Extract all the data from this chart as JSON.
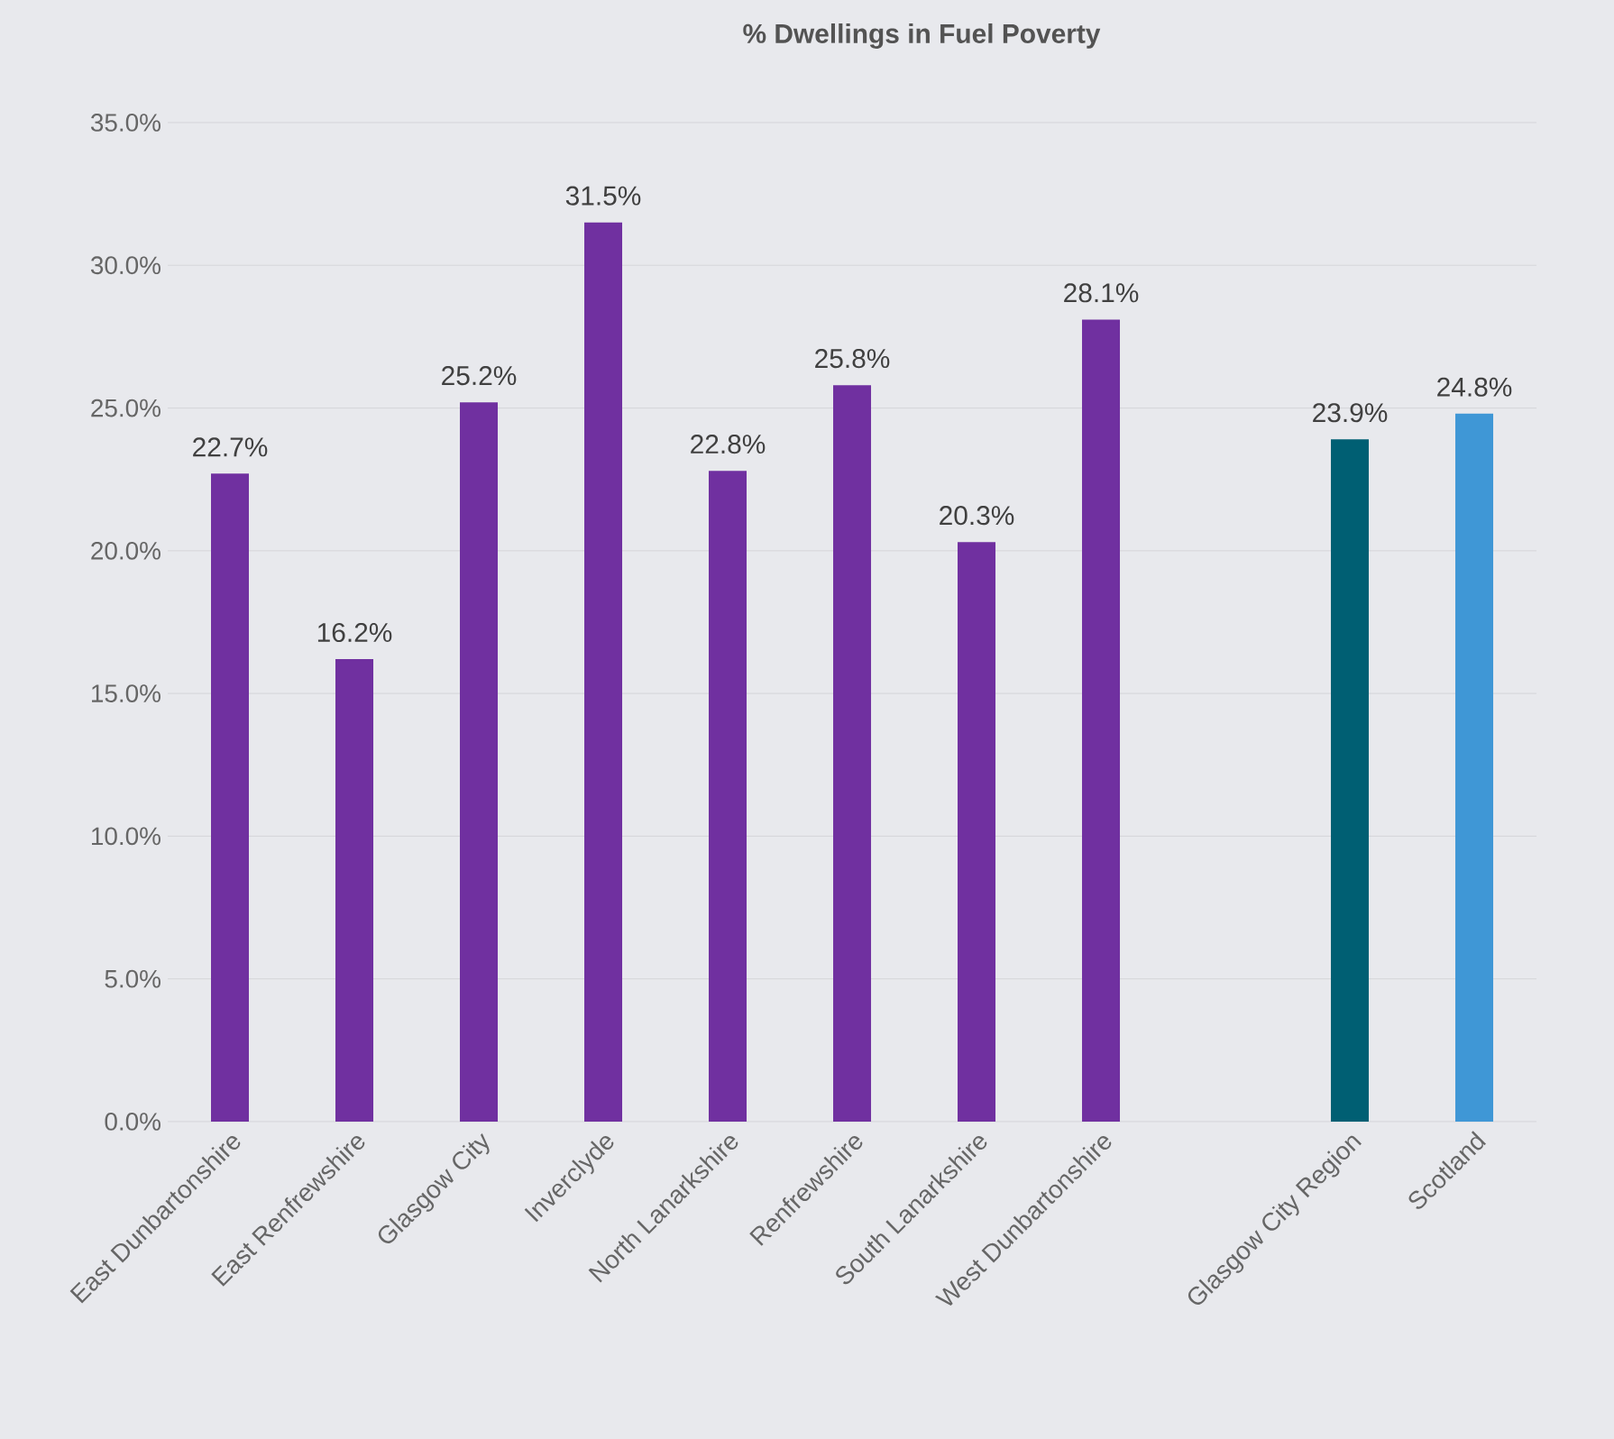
{
  "chart_data": {
    "type": "bar",
    "title": "% Dwellings in Fuel Poverty",
    "categories": [
      "East Dunbartonshire",
      "East Renfrewshire",
      "Glasgow City",
      "Inverclyde",
      "North Lanarkshire",
      "Renfrewshire",
      "South Lanarkshire",
      "West Dunbartonshire",
      null,
      "Glasgow City Region",
      "Scotland"
    ],
    "values": [
      22.7,
      16.2,
      25.2,
      31.5,
      22.8,
      25.8,
      20.3,
      28.1,
      null,
      23.9,
      24.8
    ],
    "value_labels": [
      "22.7%",
      "16.2%",
      "25.2%",
      "31.5%",
      "22.8%",
      "25.8%",
      "20.3%",
      "28.1%",
      null,
      "23.9%",
      "24.8%"
    ],
    "colors": [
      "#7030a0",
      "#7030a0",
      "#7030a0",
      "#7030a0",
      "#7030a0",
      "#7030a0",
      "#7030a0",
      "#7030a0",
      "#7030a0",
      "#005f73",
      "#3f97d6"
    ],
    "ylim": [
      0,
      35
    ],
    "yticks": [
      {
        "value": 0,
        "label": "0.0%"
      },
      {
        "value": 5,
        "label": "5.0%"
      },
      {
        "value": 10,
        "label": "10.0%"
      },
      {
        "value": 15,
        "label": "15.0%"
      },
      {
        "value": 20,
        "label": "20.0%"
      },
      {
        "value": 25,
        "label": "25.0%"
      },
      {
        "value": 30,
        "label": "30.0%"
      },
      {
        "value": 35,
        "label": "35.0%"
      }
    ],
    "grid": "y"
  }
}
